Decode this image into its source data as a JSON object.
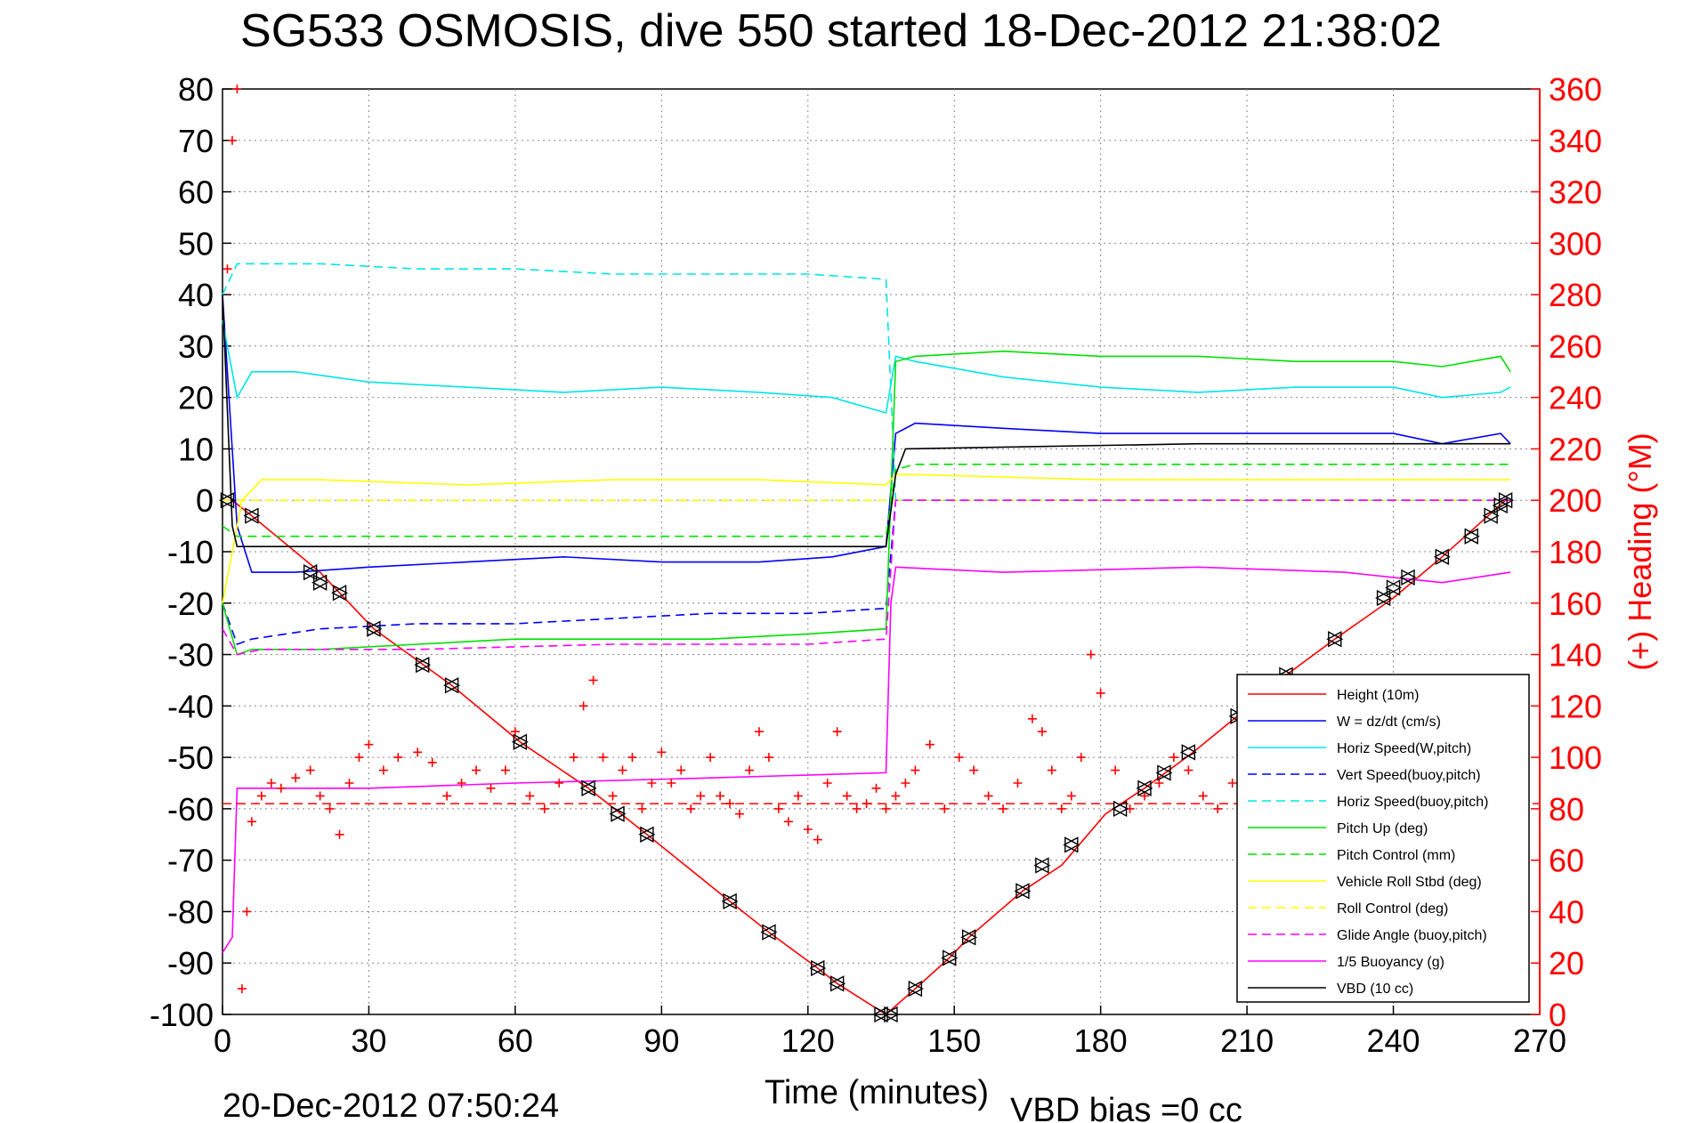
{
  "chart_data": {
    "type": "line",
    "title": "SG533 OSMOSIS, dive 550 started 18-Dec-2012 21:38:02",
    "xlabel": "Time (minutes)",
    "ylabel": "",
    "y2label": "(+) Heading (°M)",
    "footer_date": "20-Dec-2012 07:50:24",
    "footer_note": "VBD bias =0 cc",
    "xlim": [
      0,
      270
    ],
    "ylim": [
      -100,
      80
    ],
    "y2lim": [
      0,
      360
    ],
    "xticks": [
      0,
      30,
      60,
      90,
      120,
      150,
      180,
      210,
      240,
      270
    ],
    "yticks": [
      80,
      70,
      60,
      50,
      40,
      30,
      20,
      10,
      0,
      -10,
      -20,
      -30,
      -40,
      -50,
      -60,
      -70,
      -80,
      -90,
      -100
    ],
    "y2ticks": [
      360,
      340,
      320,
      300,
      280,
      260,
      240,
      220,
      200,
      180,
      160,
      140,
      120,
      100,
      80,
      60,
      40,
      20,
      0
    ],
    "grid": true,
    "legend_position": "bottom-right",
    "series": [
      {
        "name": "Height (10m)",
        "color": "#ff0000",
        "style": "solid",
        "x": [
          0,
          2,
          6,
          20,
          31,
          47,
          61,
          75,
          87,
          104,
          112,
          122,
          126,
          136,
          142,
          149,
          153,
          164,
          172,
          181,
          189,
          199,
          208,
          218,
          228,
          240,
          250,
          263
        ],
        "y": [
          0,
          0,
          -3,
          -14,
          -25,
          -36,
          -47,
          -56,
          -65,
          -78,
          -84,
          -91,
          -94,
          -100,
          -95,
          -89,
          -85,
          -76,
          -71,
          -61,
          -56,
          -49,
          -42,
          -34,
          -27,
          -19,
          -11,
          0
        ]
      },
      {
        "name": "W = dz/dt (cm/s)",
        "color": "#0000ff",
        "style": "solid",
        "x": [
          0,
          3,
          6,
          15,
          30,
          50,
          70,
          90,
          110,
          125,
          136,
          138,
          142,
          160,
          180,
          200,
          220,
          240,
          250,
          262,
          264
        ],
        "y": [
          40,
          -5,
          -14,
          -14,
          -13,
          -12,
          -11,
          -12,
          -12,
          -11,
          -9,
          13,
          15,
          14,
          13,
          13,
          13,
          13,
          11,
          13,
          11
        ]
      },
      {
        "name": "Horiz Speed(W,pitch)",
        "color": "#00e5e5",
        "style": "solid",
        "x": [
          0,
          3,
          6,
          15,
          30,
          50,
          70,
          90,
          110,
          125,
          136,
          138,
          142,
          160,
          180,
          200,
          220,
          240,
          250,
          262,
          264
        ],
        "y": [
          35,
          20,
          25,
          25,
          23,
          22,
          21,
          22,
          21,
          20,
          17,
          28,
          27,
          24,
          22,
          21,
          22,
          22,
          20,
          21,
          22
        ]
      },
      {
        "name": "Vert Speed(buoy,pitch)",
        "color": "#0000ff",
        "style": "dashed",
        "x": [
          0,
          3,
          6,
          20,
          40,
          60,
          80,
          100,
          120,
          136,
          138,
          160,
          200,
          240,
          264
        ],
        "y": [
          -20,
          -28,
          -27,
          -25,
          -24,
          -24,
          -23,
          -22,
          -22,
          -21,
          0,
          0,
          0,
          0,
          0
        ]
      },
      {
        "name": "Horiz Speed(buoy,pitch)",
        "color": "#00e5e5",
        "style": "dashed",
        "x": [
          0,
          3,
          6,
          20,
          40,
          60,
          80,
          100,
          120,
          136,
          138,
          160,
          200,
          240,
          264
        ],
        "y": [
          40,
          46,
          46,
          46,
          45,
          45,
          44,
          44,
          44,
          43,
          0,
          0,
          0,
          0,
          0
        ]
      },
      {
        "name": "Pitch Up (deg)",
        "color": "#00e000",
        "style": "solid",
        "x": [
          0,
          3,
          6,
          20,
          40,
          60,
          80,
          100,
          120,
          136,
          138,
          142,
          160,
          180,
          200,
          220,
          240,
          250,
          262,
          264
        ],
        "y": [
          -20,
          -30,
          -29,
          -29,
          -28,
          -27,
          -27,
          -27,
          -26,
          -25,
          27,
          28,
          29,
          28,
          28,
          27,
          27,
          26,
          28,
          25
        ]
      },
      {
        "name": "Pitch Control (mm)",
        "color": "#00e000",
        "style": "dashed",
        "x": [
          0,
          3,
          8,
          40,
          80,
          120,
          136,
          138,
          142,
          180,
          220,
          264
        ],
        "y": [
          -5,
          -7,
          -7,
          -7,
          -7,
          -7,
          -7,
          6,
          7,
          7,
          7,
          7
        ]
      },
      {
        "name": "Vehicle Roll Stbd (deg)",
        "color": "#ffff00",
        "style": "solid",
        "x": [
          0,
          4,
          8,
          20,
          50,
          80,
          110,
          136,
          138,
          142,
          180,
          220,
          264
        ],
        "y": [
          -20,
          0,
          4,
          4,
          3,
          4,
          4,
          3,
          5,
          5,
          4,
          4,
          4
        ]
      },
      {
        "name": "Roll Control (deg)",
        "color": "#ffff00",
        "style": "dashed",
        "x": [
          0,
          3,
          136,
          138,
          264
        ],
        "y": [
          0,
          0,
          0,
          0,
          0
        ]
      },
      {
        "name": "Glide Angle (buoy,pitch)",
        "color": "#ff00ff",
        "style": "dashed",
        "x": [
          0,
          3,
          8,
          40,
          80,
          120,
          136,
          138,
          160,
          200,
          264
        ],
        "y": [
          -25,
          -30,
          -29,
          -29,
          -28,
          -28,
          -27,
          0,
          0,
          0,
          0
        ]
      },
      {
        "name": "1/5 Buoyancy (g)",
        "color": "#ff00ff",
        "style": "solid",
        "x": [
          0,
          2,
          3,
          30,
          60,
          100,
          136,
          137,
          138,
          160,
          200,
          230,
          240,
          250,
          264
        ],
        "y": [
          -88,
          -85,
          -56,
          -56,
          -55,
          -54,
          -53,
          -20,
          -13,
          -14,
          -13,
          -14,
          -15,
          -16,
          -14
        ]
      },
      {
        "name": "VBD (10 cc)",
        "color": "#000000",
        "style": "solid",
        "x": [
          0,
          2,
          3,
          136,
          137,
          138,
          140,
          200,
          264
        ],
        "y": [
          40,
          -5,
          -9,
          -9,
          -2,
          5,
          10,
          11,
          11
        ]
      }
    ],
    "heading_markers": {
      "name": "Heading",
      "color": "#ff0000",
      "marker": "+",
      "axis": "right",
      "x": [
        1,
        2,
        3,
        4,
        5,
        6,
        8,
        10,
        12,
        15,
        18,
        20,
        22,
        24,
        26,
        28,
        30,
        33,
        36,
        40,
        43,
        46,
        49,
        52,
        55,
        58,
        60,
        63,
        66,
        69,
        72,
        74,
        76,
        78,
        80,
        82,
        84,
        86,
        88,
        90,
        92,
        94,
        96,
        98,
        100,
        102,
        104,
        106,
        108,
        110,
        112,
        114,
        116,
        118,
        120,
        122,
        124,
        126,
        128,
        130,
        132,
        134,
        136,
        138,
        140,
        142,
        145,
        148,
        151,
        154,
        157,
        160,
        163,
        166,
        168,
        170,
        172,
        174,
        176,
        178,
        180,
        183,
        186,
        189,
        192,
        195,
        198,
        201,
        204,
        207,
        210,
        213,
        216,
        219,
        222,
        225,
        228,
        231,
        234,
        237,
        240,
        243,
        246,
        249,
        252,
        255,
        258,
        261,
        264
      ],
      "y": [
        290,
        340,
        360,
        10,
        40,
        75,
        85,
        90,
        88,
        92,
        95,
        85,
        80,
        70,
        90,
        100,
        105,
        95,
        100,
        102,
        98,
        85,
        90,
        95,
        88,
        95,
        110,
        85,
        80,
        90,
        100,
        120,
        130,
        100,
        85,
        95,
        100,
        80,
        90,
        102,
        90,
        95,
        80,
        85,
        100,
        85,
        82,
        78,
        95,
        110,
        100,
        80,
        75,
        85,
        72,
        68,
        90,
        110,
        85,
        80,
        82,
        88,
        80,
        85,
        90,
        95,
        105,
        80,
        100,
        95,
        85,
        80,
        90,
        115,
        110,
        95,
        80,
        85,
        100,
        140,
        125,
        95,
        80,
        85,
        90,
        100,
        95,
        85,
        80,
        90,
        80,
        85,
        90,
        80,
        70,
        85,
        90,
        80,
        85,
        80,
        90,
        85,
        95,
        100,
        105,
        95,
        110,
        100,
        105
      ]
    },
    "heading_reference": {
      "color": "#ff0000",
      "style": "dashed",
      "value": 82,
      "axis": "right"
    },
    "triangle_markers": {
      "color": "#000000",
      "x": [
        1,
        6,
        18,
        20,
        24,
        31,
        41,
        47,
        61,
        75,
        81,
        87,
        104,
        112,
        122,
        126,
        135,
        137,
        142,
        149,
        153,
        164,
        168,
        174,
        184,
        189,
        193,
        198,
        208,
        218,
        228,
        238,
        240,
        243,
        250,
        256,
        260,
        262,
        263
      ],
      "y": [
        0,
        -3,
        -14,
        -16,
        -18,
        -25,
        -32,
        -36,
        -47,
        -56,
        -61,
        -65,
        -78,
        -84,
        -91,
        -94,
        -100,
        -100,
        -95,
        -89,
        -85,
        -76,
        -71,
        -67,
        -60,
        -56,
        -53,
        -49,
        -42,
        -34,
        -27,
        -19,
        -17,
        -15,
        -11,
        -7,
        -3,
        -1,
        0
      ]
    }
  }
}
